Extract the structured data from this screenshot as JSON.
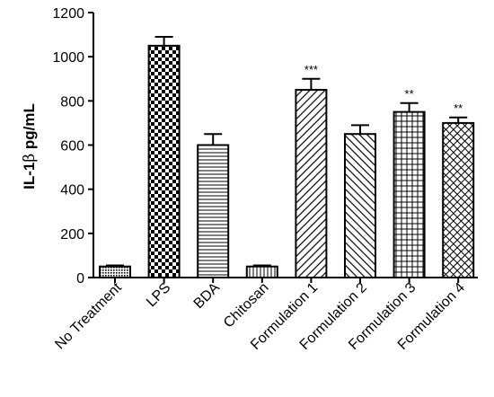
{
  "chart_data": {
    "type": "bar",
    "title": "",
    "xlabel": "",
    "ylabel": {
      "prefix": "IL-1",
      "greek": "β",
      "suffix": " pg/mL"
    },
    "ylim": [
      0,
      1200
    ],
    "yticks": [
      "0",
      "200",
      "400",
      "600",
      "800",
      "1000",
      "1200"
    ],
    "grid": false,
    "legend": "none",
    "categories": [
      "No Treatment",
      "LPS",
      "BDA",
      "Chitosan",
      "Formulation 1",
      "Formulation 2",
      "Formulation 3",
      "Formulation 4"
    ],
    "values": [
      50,
      1050,
      600,
      50,
      850,
      650,
      750,
      700
    ],
    "errors": [
      5,
      40,
      50,
      5,
      50,
      40,
      40,
      25
    ],
    "significance": [
      "",
      "",
      "",
      "",
      "***",
      "",
      "**",
      "**"
    ],
    "patterns": [
      "dense-dots",
      "checker",
      "horizontal-lines",
      "vertical-lines",
      "diagonal-up",
      "diagonal-down",
      "grid",
      "crosshatch-diagonal"
    ]
  }
}
